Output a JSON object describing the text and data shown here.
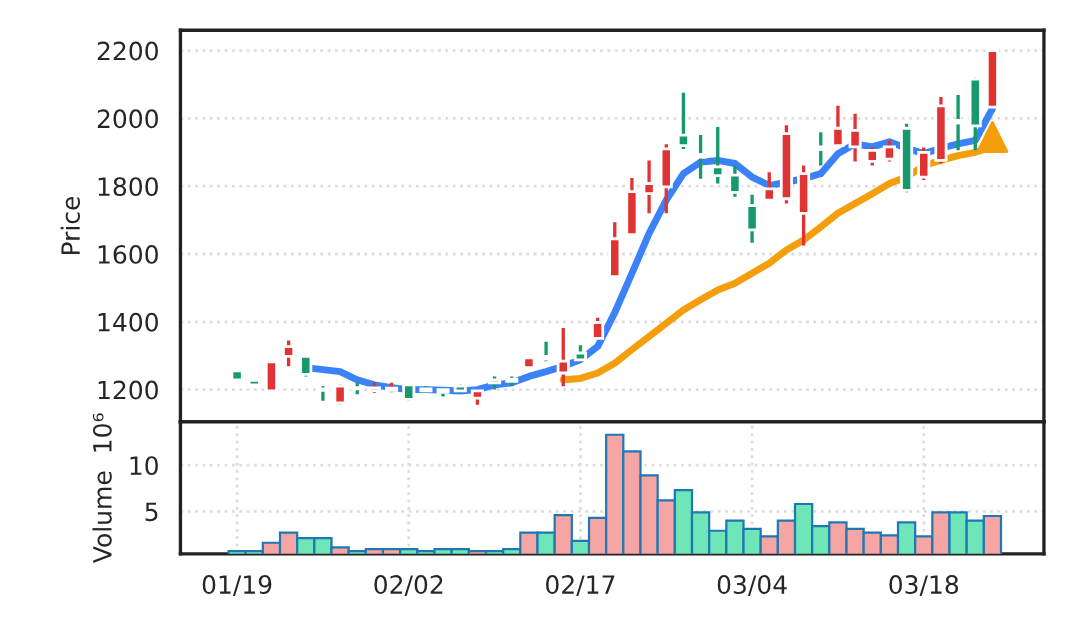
{
  "chart_data": [
    {
      "type": "candlestick",
      "ylabel": "Price",
      "ylim": [
        1105,
        2260
      ],
      "yticks": [
        1200,
        1400,
        1600,
        1800,
        2000,
        2200
      ],
      "grid": true,
      "tick_labels": "y",
      "series": [
        {
          "type": "candlestick",
          "ohlc": [
            [
              1255,
              1257,
              1227,
              1229
            ],
            [
              1227,
              1229,
              1212,
              1214
            ],
            [
              1196,
              1284,
              1194,
              1282
            ],
            [
              1298,
              1345,
              1269,
              1327
            ],
            [
              1298,
              1300,
              1239,
              1245
            ],
            [
              1202,
              1210,
              1167,
              1198
            ],
            [
              1161,
              1214,
              1157,
              1210
            ],
            [
              1206,
              1220,
              1186,
              1202
            ],
            [
              1196,
              1222,
              1190,
              1205
            ],
            [
              1198,
              1220,
              1192,
              1204
            ],
            [
              1214,
              1216,
              1167,
              1171
            ],
            [
              1202,
              1210,
              1190,
              1196
            ],
            [
              1200,
              1204,
              1180,
              1192
            ],
            [
              1210,
              1214,
              1192,
              1196
            ],
            [
              1175,
              1200,
              1155,
              1196
            ],
            [
              1229,
              1239,
              1200,
              1220
            ],
            [
              1231,
              1239,
              1210,
              1224
            ],
            [
              1265,
              1296,
              1263,
              1294
            ],
            [
              1298,
              1341,
              1284,
              1290
            ],
            [
              1249,
              1382,
              1210,
              1284
            ],
            [
              1308,
              1331,
              1284,
              1288
            ],
            [
              1351,
              1412,
              1347,
              1398
            ],
            [
              1533,
              1694,
              1529,
              1645
            ],
            [
              1657,
              1824,
              1653,
              1784
            ],
            [
              1778,
              1876,
              1720,
              1808
            ],
            [
              1798,
              1924,
              1720,
              1910
            ],
            [
              1951,
              2076,
              1910,
              1920
            ],
            [
              1894,
              1951,
              1822,
              1886
            ],
            [
              1857,
              1975,
              1808,
              1831
            ],
            [
              1833,
              1861,
              1769,
              1782
            ],
            [
              1743,
              1775,
              1633,
              1671
            ],
            [
              1759,
              1841,
              1759,
              1792
            ],
            [
              1763,
              1980,
              1749,
              1955
            ],
            [
              1720,
              1861,
              1625,
              1837
            ],
            [
              1916,
              1959,
              1861,
              1908
            ],
            [
              1920,
              2037,
              1916,
              1971
            ],
            [
              1916,
              2014,
              1873,
              1965
            ],
            [
              1873,
              1916,
              1861,
              1906
            ],
            [
              1880,
              1935,
              1873,
              1916
            ],
            [
              1971,
              1984,
              1782,
              1788
            ],
            [
              1827,
              1914,
              1818,
              1900
            ],
            [
              1876,
              2063,
              1867,
              2037
            ],
            [
              1994,
              2069,
              1906,
              1986
            ],
            [
              2116,
              2120,
              1906,
              1978
            ],
            [
              2033,
              2200,
              2033,
              2200
            ]
          ],
          "colors": [
            "#149a6c",
            "#149a6c",
            "#e03434",
            "#e03434",
            "#149a6c",
            "#149a6c",
            "#e03434",
            "#149a6c",
            "#e03434",
            "#e03434",
            "#149a6c",
            "#149a6c",
            "#149a6c",
            "#149a6c",
            "#e03434",
            "#149a6c",
            "#149a6c",
            "#e03434",
            "#149a6c",
            "#e03434",
            "#149a6c",
            "#e03434",
            "#e03434",
            "#e03434",
            "#e03434",
            "#e03434",
            "#149a6c",
            "#149a6c",
            "#149a6c",
            "#149a6c",
            "#149a6c",
            "#e03434",
            "#e03434",
            "#e03434",
            "#149a6c",
            "#e03434",
            "#e03434",
            "#e03434",
            "#e03434",
            "#149a6c",
            "#e03434",
            "#e03434",
            "#149a6c",
            "#149a6c",
            "#e03434"
          ]
        },
        {
          "type": "line",
          "color": "#3b82f6",
          "values": [
            null,
            null,
            null,
            null,
            1265,
            1259,
            1253,
            1229,
            1214,
            1206,
            1200,
            1200,
            1198,
            1196,
            1200,
            1214,
            1220,
            1239,
            1253,
            1269,
            1288,
            1327,
            1427,
            1543,
            1661,
            1759,
            1837,
            1871,
            1876,
            1867,
            1827,
            1802,
            1812,
            1822,
            1837,
            1896,
            1925,
            1916,
            1931,
            1912,
            1896,
            1912,
            1925,
            1935,
            2029
          ]
        },
        {
          "type": "line",
          "color": "#f59e0b",
          "values": [
            null,
            null,
            null,
            null,
            null,
            null,
            null,
            null,
            null,
            null,
            null,
            null,
            null,
            null,
            null,
            null,
            null,
            null,
            null,
            1229,
            1233,
            1249,
            1278,
            1318,
            1357,
            1396,
            1435,
            1465,
            1494,
            1514,
            1543,
            1573,
            1612,
            1641,
            1680,
            1720,
            1749,
            1778,
            1808,
            1827,
            1861,
            1876,
            1890,
            1900,
            1916
          ]
        },
        {
          "type": "scatter",
          "color": "#f59e0b",
          "marker": "triangle",
          "values": [
            null,
            null,
            null,
            null,
            null,
            null,
            null,
            null,
            null,
            null,
            null,
            null,
            null,
            null,
            null,
            null,
            null,
            null,
            null,
            null,
            null,
            null,
            null,
            null,
            null,
            null,
            null,
            null,
            null,
            null,
            null,
            null,
            null,
            null,
            null,
            null,
            null,
            null,
            null,
            null,
            null,
            null,
            null,
            null,
            1945
          ]
        }
      ]
    },
    {
      "type": "bar",
      "ylabel": "Volume  10⁶",
      "ylim": [
        0.4,
        14.7
      ],
      "yticks": [
        5,
        10
      ],
      "grid": true,
      "categories": [
        "01/19",
        null,
        null,
        null,
        null,
        null,
        null,
        null,
        null,
        null,
        "02/02",
        null,
        null,
        null,
        null,
        null,
        null,
        null,
        null,
        null,
        "02/17",
        null,
        null,
        null,
        null,
        null,
        null,
        null,
        null,
        null,
        "03/04",
        null,
        null,
        null,
        null,
        null,
        null,
        null,
        null,
        null,
        "03/18",
        null,
        null,
        null,
        null
      ],
      "values": [
        0.7,
        0.7,
        1.6,
        2.7,
        2.1,
        2.1,
        1.1,
        0.7,
        0.9,
        0.9,
        0.9,
        0.7,
        0.9,
        0.9,
        0.7,
        0.7,
        0.9,
        2.7,
        2.7,
        4.6,
        1.8,
        4.3,
        13.3,
        11.5,
        8.9,
        6.2,
        7.3,
        4.9,
        2.9,
        4.0,
        3.1,
        2.3,
        4.0,
        5.8,
        3.4,
        3.8,
        3.1,
        2.7,
        2.4,
        3.8,
        2.3,
        4.9,
        4.9,
        4.0,
        4.5
      ],
      "colors": [
        "#6ee6b8",
        "#6ee6b8",
        "#f6a5a5",
        "#f6a5a5",
        "#6ee6b8",
        "#6ee6b8",
        "#f6a5a5",
        "#6ee6b8",
        "#f6a5a5",
        "#f6a5a5",
        "#6ee6b8",
        "#6ee6b8",
        "#6ee6b8",
        "#6ee6b8",
        "#f6a5a5",
        "#6ee6b8",
        "#6ee6b8",
        "#f6a5a5",
        "#6ee6b8",
        "#f6a5a5",
        "#6ee6b8",
        "#f6a5a5",
        "#f6a5a5",
        "#f6a5a5",
        "#f6a5a5",
        "#f6a5a5",
        "#6ee6b8",
        "#6ee6b8",
        "#6ee6b8",
        "#6ee6b8",
        "#6ee6b8",
        "#f6a5a5",
        "#f6a5a5",
        "#6ee6b8",
        "#6ee6b8",
        "#f6a5a5",
        "#f6a5a5",
        "#f6a5a5",
        "#f6a5a5",
        "#6ee6b8",
        "#f6a5a5",
        "#f6a5a5",
        "#6ee6b8",
        "#6ee6b8",
        "#f6a5a5"
      ]
    }
  ]
}
